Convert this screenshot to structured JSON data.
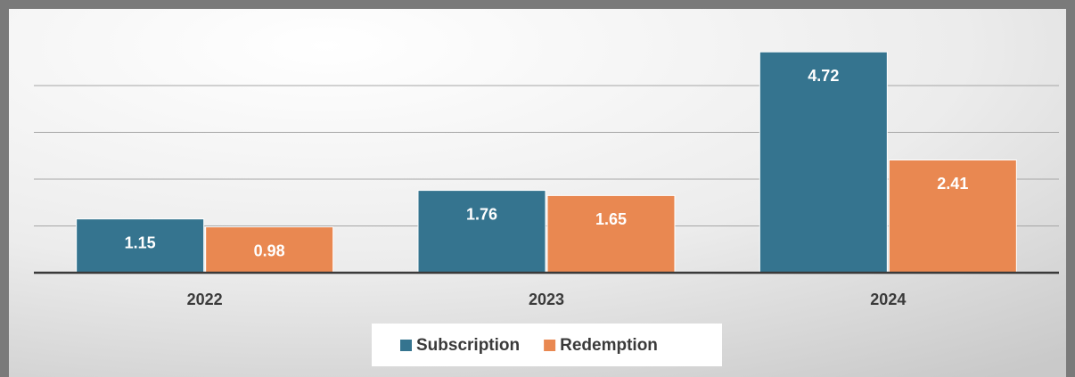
{
  "chart_data": {
    "type": "bar",
    "categories": [
      "2022",
      "2023",
      "2024"
    ],
    "series": [
      {
        "name": "Subscription",
        "color": "#35748f",
        "values": [
          1.15,
          1.76,
          4.72
        ]
      },
      {
        "name": "Redemption",
        "color": "#e98851",
        "values": [
          0.98,
          1.65,
          2.41
        ]
      }
    ],
    "ylim": [
      0,
      5
    ],
    "yticks": [
      0,
      1,
      2,
      3,
      4
    ],
    "grid": true,
    "legend": "bottom"
  }
}
